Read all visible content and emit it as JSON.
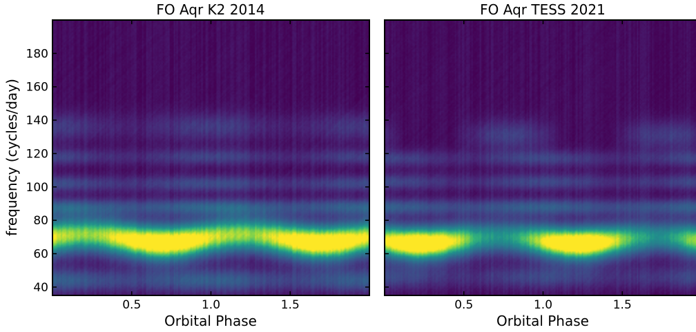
{
  "chart_data": [
    {
      "type": "heatmap",
      "title": "FO Aqr  K2  2014",
      "xlabel": "Orbital Phase",
      "ylabel": "frequency (cycles/day)",
      "xlim": [
        0.0,
        2.0
      ],
      "ylim": [
        35,
        200
      ],
      "xticks": [
        0.5,
        1.0,
        1.5
      ],
      "xtick_labels": [
        "0.5",
        "1.0",
        "1.5"
      ],
      "yticks": [
        40,
        60,
        80,
        100,
        120,
        140,
        160,
        180
      ],
      "ytick_labels": [
        "40",
        "60",
        "80",
        "100",
        "120",
        "140",
        "160",
        "180"
      ],
      "colormap": "viridis",
      "bands": [
        {
          "center": 69,
          "sigma": 7.5,
          "amp": 1.0,
          "amp_mod": 0.15,
          "shift_amp": -2.5,
          "peak_phase": 0.7
        },
        {
          "center": 88,
          "sigma": 3.5,
          "amp": 0.3,
          "amp_mod": 0.05,
          "shift_amp": 0,
          "peak_phase": 0.0
        },
        {
          "center": 102,
          "sigma": 3.5,
          "amp": 0.2,
          "amp_mod": 0.05,
          "shift_amp": 0,
          "peak_phase": 0.0
        },
        {
          "center": 118,
          "sigma": 3.5,
          "amp": 0.16,
          "amp_mod": 0.05,
          "shift_amp": 0,
          "peak_phase": 0.0
        },
        {
          "center": 136,
          "sigma": 6.0,
          "amp": 0.13,
          "amp_mod": 0.05,
          "shift_amp": 0,
          "peak_phase": 0.0
        },
        {
          "center": 44,
          "sigma": 5.0,
          "amp": 0.28,
          "amp_mod": 0.06,
          "shift_amp": 0,
          "peak_phase": 0.0
        }
      ]
    },
    {
      "type": "heatmap",
      "title": "FO Aqr  TESS  2021",
      "xlabel": "Orbital Phase",
      "ylabel": "",
      "xlim": [
        0.0,
        2.0
      ],
      "ylim": [
        35,
        200
      ],
      "xticks": [
        0.5,
        1.0,
        1.5
      ],
      "xtick_labels": [
        "0.5",
        "1.0",
        "1.5"
      ],
      "yticks": [
        40,
        60,
        80,
        100,
        120,
        140,
        160,
        180
      ],
      "ytick_labels": [
        "",
        "",
        "",
        "",
        "",
        "",
        "",
        ""
      ],
      "colormap": "viridis",
      "bands": [
        {
          "center": 68,
          "sigma": 7.0,
          "amp": 0.9,
          "amp_mod": 0.3,
          "shift_amp": -2.0,
          "peak_phase": 0.22
        },
        {
          "center": 88,
          "sigma": 3.5,
          "amp": 0.28,
          "amp_mod": 0.05,
          "shift_amp": 0,
          "peak_phase": 0.0
        },
        {
          "center": 103,
          "sigma": 3.5,
          "amp": 0.18,
          "amp_mod": 0.05,
          "shift_amp": 0,
          "peak_phase": 0.0
        },
        {
          "center": 117,
          "sigma": 3.5,
          "amp": 0.16,
          "amp_mod": 0.05,
          "shift_amp": 0,
          "peak_phase": 0.0
        },
        {
          "center": 131,
          "sigma": 6.5,
          "amp": 0.08,
          "amp_mod": 0.12,
          "shift_amp": 0,
          "peak_phase": 0.78
        },
        {
          "center": 46,
          "sigma": 5.0,
          "amp": 0.18,
          "amp_mod": 0.05,
          "shift_amp": 0,
          "peak_phase": 0.0
        }
      ]
    }
  ]
}
